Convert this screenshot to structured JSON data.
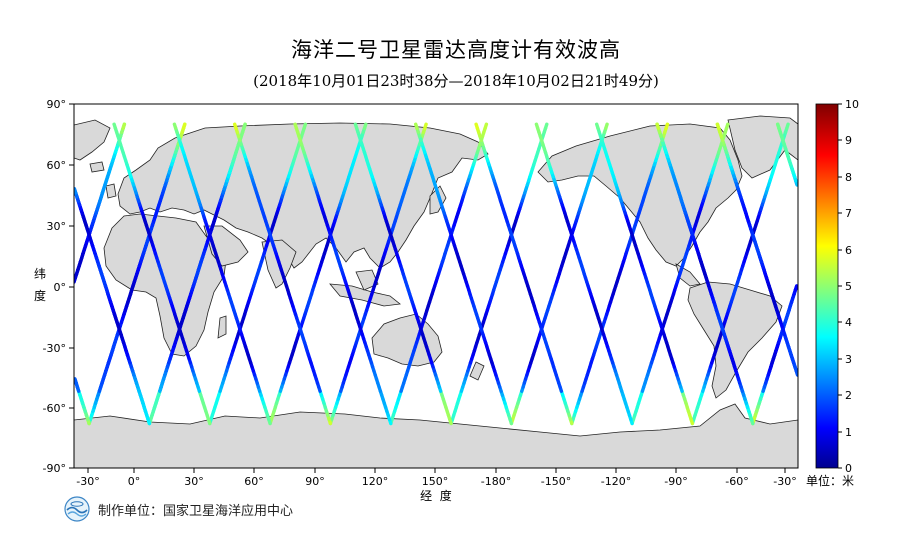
{
  "header": {
    "title": "海洋二号卫星雷达高度计有效波高",
    "subtitle": "(2018年10月01日23时38分—2018年10月02日21时49分)"
  },
  "map": {
    "lat_ticks": [
      "90°",
      "60°",
      "30°",
      "0°",
      "-30°",
      "-60°",
      "-90°"
    ],
    "lon_ticks": [
      "-30°",
      "0°",
      "30°",
      "60°",
      "90°",
      "120°",
      "150°",
      "-180°",
      "-150°",
      "-120°",
      "-90°",
      "-60°",
      "-30°"
    ],
    "ylabel_chars": [
      "纬",
      "度"
    ],
    "xlabel": "经  度",
    "land_color": "#d9d9d9",
    "ocean_color": "#ffffff"
  },
  "colorbar": {
    "ticks": [
      "0",
      "1",
      "2",
      "3",
      "4",
      "5",
      "6",
      "7",
      "8",
      "9",
      "10"
    ],
    "unit_label": "单位：米",
    "range": [
      0,
      10
    ],
    "colormap": "jet"
  },
  "footer": {
    "producer": "制作单位：国家卫星海洋应用中心",
    "logo_icon": "nsoas-logo-icon"
  },
  "tracks": {
    "slopes_deg_per_deg": [
      2.8,
      -2.8
    ],
    "base_value_m": 2.2
  }
}
